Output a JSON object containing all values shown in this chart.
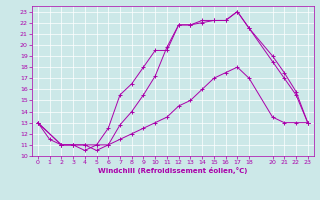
{
  "xlabel": "Windchill (Refroidissement éolien,°C)",
  "bg_color": "#cce8e8",
  "grid_color": "#ffffff",
  "line_color": "#aa00aa",
  "xlim": [
    -0.5,
    23.5
  ],
  "ylim": [
    10,
    23.5
  ],
  "xticks": [
    0,
    1,
    2,
    3,
    4,
    5,
    6,
    7,
    8,
    9,
    10,
    11,
    12,
    13,
    14,
    15,
    16,
    17,
    18,
    20,
    21,
    22,
    23
  ],
  "yticks": [
    10,
    11,
    12,
    13,
    14,
    15,
    16,
    17,
    18,
    19,
    20,
    21,
    22,
    23
  ],
  "lines": [
    {
      "x": [
        0,
        1,
        2,
        3,
        4,
        5,
        6,
        7,
        8,
        9,
        10,
        11,
        12,
        13,
        14,
        15,
        16,
        17,
        18,
        20,
        21,
        22,
        23
      ],
      "y": [
        13,
        11.5,
        11,
        11,
        10.5,
        11,
        12.5,
        15.5,
        16.5,
        18,
        19.5,
        19.5,
        21.8,
        21.8,
        22.2,
        22.2,
        22.2,
        23,
        21.5,
        18.5,
        17,
        15.5,
        13
      ]
    },
    {
      "x": [
        0,
        2,
        3,
        4,
        5,
        6,
        7,
        8,
        9,
        10,
        11,
        12,
        13,
        14,
        15,
        16,
        17,
        18,
        20,
        21,
        22,
        23
      ],
      "y": [
        13,
        11,
        11,
        11,
        11,
        11,
        12.8,
        14,
        15.5,
        17.2,
        19.8,
        21.8,
        21.8,
        22,
        22.2,
        22.2,
        23,
        21.5,
        19,
        17.5,
        15.8,
        13
      ]
    },
    {
      "x": [
        0,
        2,
        3,
        4,
        5,
        6,
        7,
        8,
        9,
        10,
        11,
        12,
        13,
        14,
        15,
        16,
        17,
        18,
        20,
        21,
        22,
        23
      ],
      "y": [
        13,
        11,
        11,
        11,
        10.5,
        11,
        11.5,
        12,
        12.5,
        13,
        13.5,
        14.5,
        15,
        16,
        17,
        17.5,
        18,
        17,
        13.5,
        13,
        13,
        13
      ]
    }
  ]
}
